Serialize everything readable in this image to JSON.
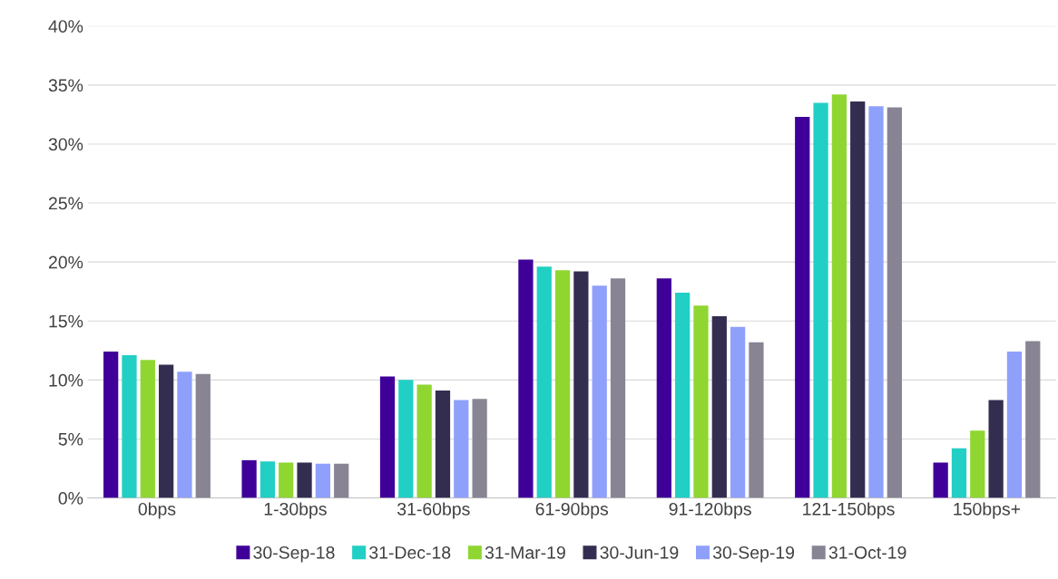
{
  "chart_data": {
    "type": "bar",
    "categories": [
      "0bps",
      "1-30bps",
      "31-60bps",
      "61-90bps",
      "91-120bps",
      "121-150bps",
      "150bps+"
    ],
    "series": [
      {
        "name": "30-Sep-18",
        "color": "#3f0099",
        "values": [
          12.4,
          3.2,
          10.3,
          20.2,
          18.6,
          32.3,
          3.0
        ]
      },
      {
        "name": "31-Dec-18",
        "color": "#22cfc4",
        "values": [
          12.1,
          3.1,
          10.0,
          19.6,
          17.4,
          33.5,
          4.2
        ]
      },
      {
        "name": "31-Mar-19",
        "color": "#8fd631",
        "values": [
          11.7,
          3.0,
          9.6,
          19.3,
          16.3,
          34.2,
          5.7
        ]
      },
      {
        "name": "30-Jun-19",
        "color": "#332e50",
        "values": [
          11.3,
          3.0,
          9.1,
          19.2,
          15.4,
          33.6,
          8.3
        ]
      },
      {
        "name": "30-Sep-19",
        "color": "#8fa0fb",
        "values": [
          10.7,
          2.9,
          8.3,
          18.0,
          14.5,
          33.2,
          12.4
        ]
      },
      {
        "name": "31-Oct-19",
        "color": "#888494",
        "values": [
          10.5,
          2.9,
          8.4,
          18.6,
          13.2,
          33.1,
          13.3
        ]
      }
    ],
    "ylim": [
      0,
      40
    ],
    "yticks": [
      {
        "value": 0,
        "label": "0%"
      },
      {
        "value": 5,
        "label": "5%"
      },
      {
        "value": 10,
        "label": "10%"
      },
      {
        "value": 15,
        "label": "15%"
      },
      {
        "value": 20,
        "label": "20%"
      },
      {
        "value": 25,
        "label": "25%"
      },
      {
        "value": 30,
        "label": "30%"
      },
      {
        "value": 35,
        "label": "35%"
      },
      {
        "value": 40,
        "label": "40%"
      }
    ],
    "grid": "y",
    "legend": "bottom"
  }
}
